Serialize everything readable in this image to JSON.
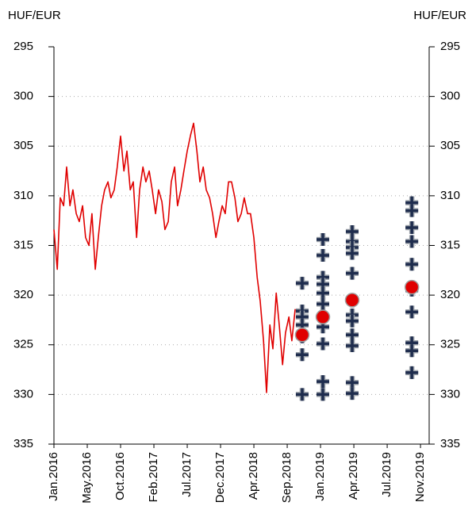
{
  "chart_data": {
    "type": "line",
    "y_label": "HUF/EUR",
    "y2_label": "HUF/EUR",
    "ylim": [
      295,
      335
    ],
    "yticks": [
      295,
      300,
      305,
      310,
      315,
      320,
      325,
      330,
      335
    ],
    "y2lim": [
      295,
      335
    ],
    "y2ticks": [
      295,
      300,
      305,
      310,
      315,
      320,
      325,
      330,
      335
    ],
    "y_inverted": true,
    "grid": true,
    "xlim": [
      0,
      11.26
    ],
    "xticks": [
      {
        "value": 0,
        "label": "Jan.2016"
      },
      {
        "value": 1,
        "label": "May.2016"
      },
      {
        "value": 2,
        "label": "Oct.2016"
      },
      {
        "value": 3,
        "label": "Feb.2017"
      },
      {
        "value": 4,
        "label": "Jul.2017"
      },
      {
        "value": 5,
        "label": "Dec.2017"
      },
      {
        "value": 6,
        "label": "Apr.2018"
      },
      {
        "value": 7,
        "label": "Sep.2018"
      },
      {
        "value": 8,
        "label": "Jan.2019"
      },
      {
        "value": 9,
        "label": "Apr.2019"
      },
      {
        "value": 10,
        "label": "Jul.2019"
      },
      {
        "value": 11,
        "label": "Nov.2019"
      }
    ],
    "series": [
      {
        "type": "line",
        "color": "#e00000",
        "x": [
          0,
          0.1,
          0.19,
          0.29,
          0.38,
          0.48,
          0.57,
          0.67,
          0.76,
          0.86,
          0.95,
          1.05,
          1.14,
          1.24,
          1.33,
          1.43,
          1.52,
          1.62,
          1.71,
          1.81,
          1.9,
          2,
          2.1,
          2.19,
          2.29,
          2.38,
          2.48,
          2.57,
          2.67,
          2.76,
          2.86,
          2.95,
          3.05,
          3.14,
          3.24,
          3.33,
          3.43,
          3.52,
          3.62,
          3.71,
          3.81,
          3.9,
          4,
          4.1,
          4.19,
          4.29,
          4.38,
          4.48,
          4.57,
          4.67,
          4.76,
          4.86,
          4.95,
          5.05,
          5.14,
          5.24,
          5.33,
          5.43,
          5.52,
          5.62,
          5.71,
          5.81,
          5.9,
          6,
          6.1,
          6.19,
          6.29,
          6.38,
          6.48,
          6.57,
          6.67,
          6.76,
          6.86,
          6.95,
          7.05,
          7.14,
          7.24
        ],
        "values": [
          313.4,
          317.4,
          310.2,
          311.0,
          307.1,
          311.0,
          309.4,
          311.8,
          312.6,
          311.0,
          314.2,
          315.0,
          311.8,
          317.4,
          314.2,
          311.0,
          309.4,
          308.6,
          310.2,
          309.4,
          307.1,
          304.0,
          307.5,
          305.5,
          309.4,
          308.6,
          314.2,
          309.4,
          307.1,
          308.6,
          307.5,
          309.4,
          311.8,
          309.4,
          310.6,
          313.4,
          312.6,
          308.6,
          307.1,
          311.0,
          309.4,
          307.5,
          305.5,
          303.9,
          302.7,
          305.5,
          308.6,
          307.1,
          309.4,
          310.2,
          311.8,
          314.2,
          312.6,
          311.0,
          311.8,
          308.6,
          308.6,
          310.2,
          312.6,
          311.8,
          310.2,
          311.8,
          311.8,
          314.2,
          318.2,
          320.6,
          324.6,
          329.8,
          323.0,
          325.4,
          319.8,
          323.0,
          327.0,
          323.8,
          322.2,
          324.6,
          321.4
        ]
      },
      {
        "type": "cross",
        "color": "#1f2d4e",
        "x": [
          7.45,
          7.45,
          7.45,
          7.45,
          7.45,
          7.45,
          7.45,
          8.07,
          8.07,
          8.07,
          8.07,
          8.07,
          8.07,
          8.07,
          8.07,
          8.07,
          8.07,
          8.07,
          8.95,
          8.95,
          8.95,
          8.95,
          8.95,
          8.95,
          8.95,
          8.95,
          8.95,
          8.95,
          8.95,
          8.95,
          10.74,
          10.74,
          10.74,
          10.74,
          10.74,
          10.74,
          10.74,
          10.74,
          10.74,
          10.74
        ],
        "values": [
          318.8,
          321.6,
          322.2,
          323.0,
          324.2,
          326.0,
          330.0,
          314.4,
          316.0,
          318.2,
          318.9,
          319.8,
          320.9,
          322.1,
          323.2,
          324.9,
          328.7,
          330.0,
          313.6,
          314.6,
          315.2,
          315.8,
          317.8,
          320.6,
          322.0,
          322.6,
          324.0,
          325.1,
          328.8,
          329.9,
          310.7,
          311.5,
          313.2,
          314.6,
          316.9,
          319.5,
          321.7,
          324.8,
          325.6,
          327.8
        ]
      },
      {
        "type": "dot",
        "color": "#e00000",
        "x": [
          7.45,
          8.07,
          8.95,
          10.74
        ],
        "values": [
          324.0,
          322.2,
          320.5,
          319.2
        ]
      }
    ]
  }
}
